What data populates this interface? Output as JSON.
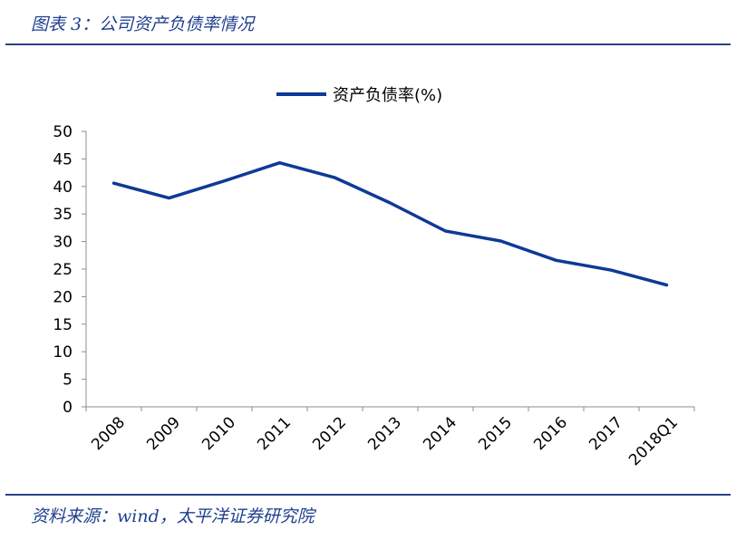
{
  "header": {
    "title": "图表 3：公司资产负债率情况"
  },
  "footer": {
    "source": "资料来源：wind，太平洋证券研究院"
  },
  "colors": {
    "line": "#0d3a96",
    "rule": "#2a3f8e",
    "text_accent": "#1f3f8f"
  },
  "chart_data": {
    "type": "line",
    "title": "",
    "xlabel": "",
    "ylabel": "",
    "categories": [
      "2008",
      "2009",
      "2010",
      "2011",
      "2012",
      "2013",
      "2014",
      "2015",
      "2016",
      "2017",
      "2018Q1"
    ],
    "series": [
      {
        "name": "资产负债率(%)",
        "values": [
          40.6,
          37.9,
          41.0,
          44.3,
          41.6,
          37.0,
          31.9,
          30.1,
          26.6,
          24.8,
          22.1
        ]
      }
    ],
    "ylim": [
      0,
      50
    ],
    "yticks": [
      0,
      5,
      10,
      15,
      20,
      25,
      30,
      35,
      40,
      45,
      50
    ],
    "grid": false,
    "legend": "top-center"
  }
}
